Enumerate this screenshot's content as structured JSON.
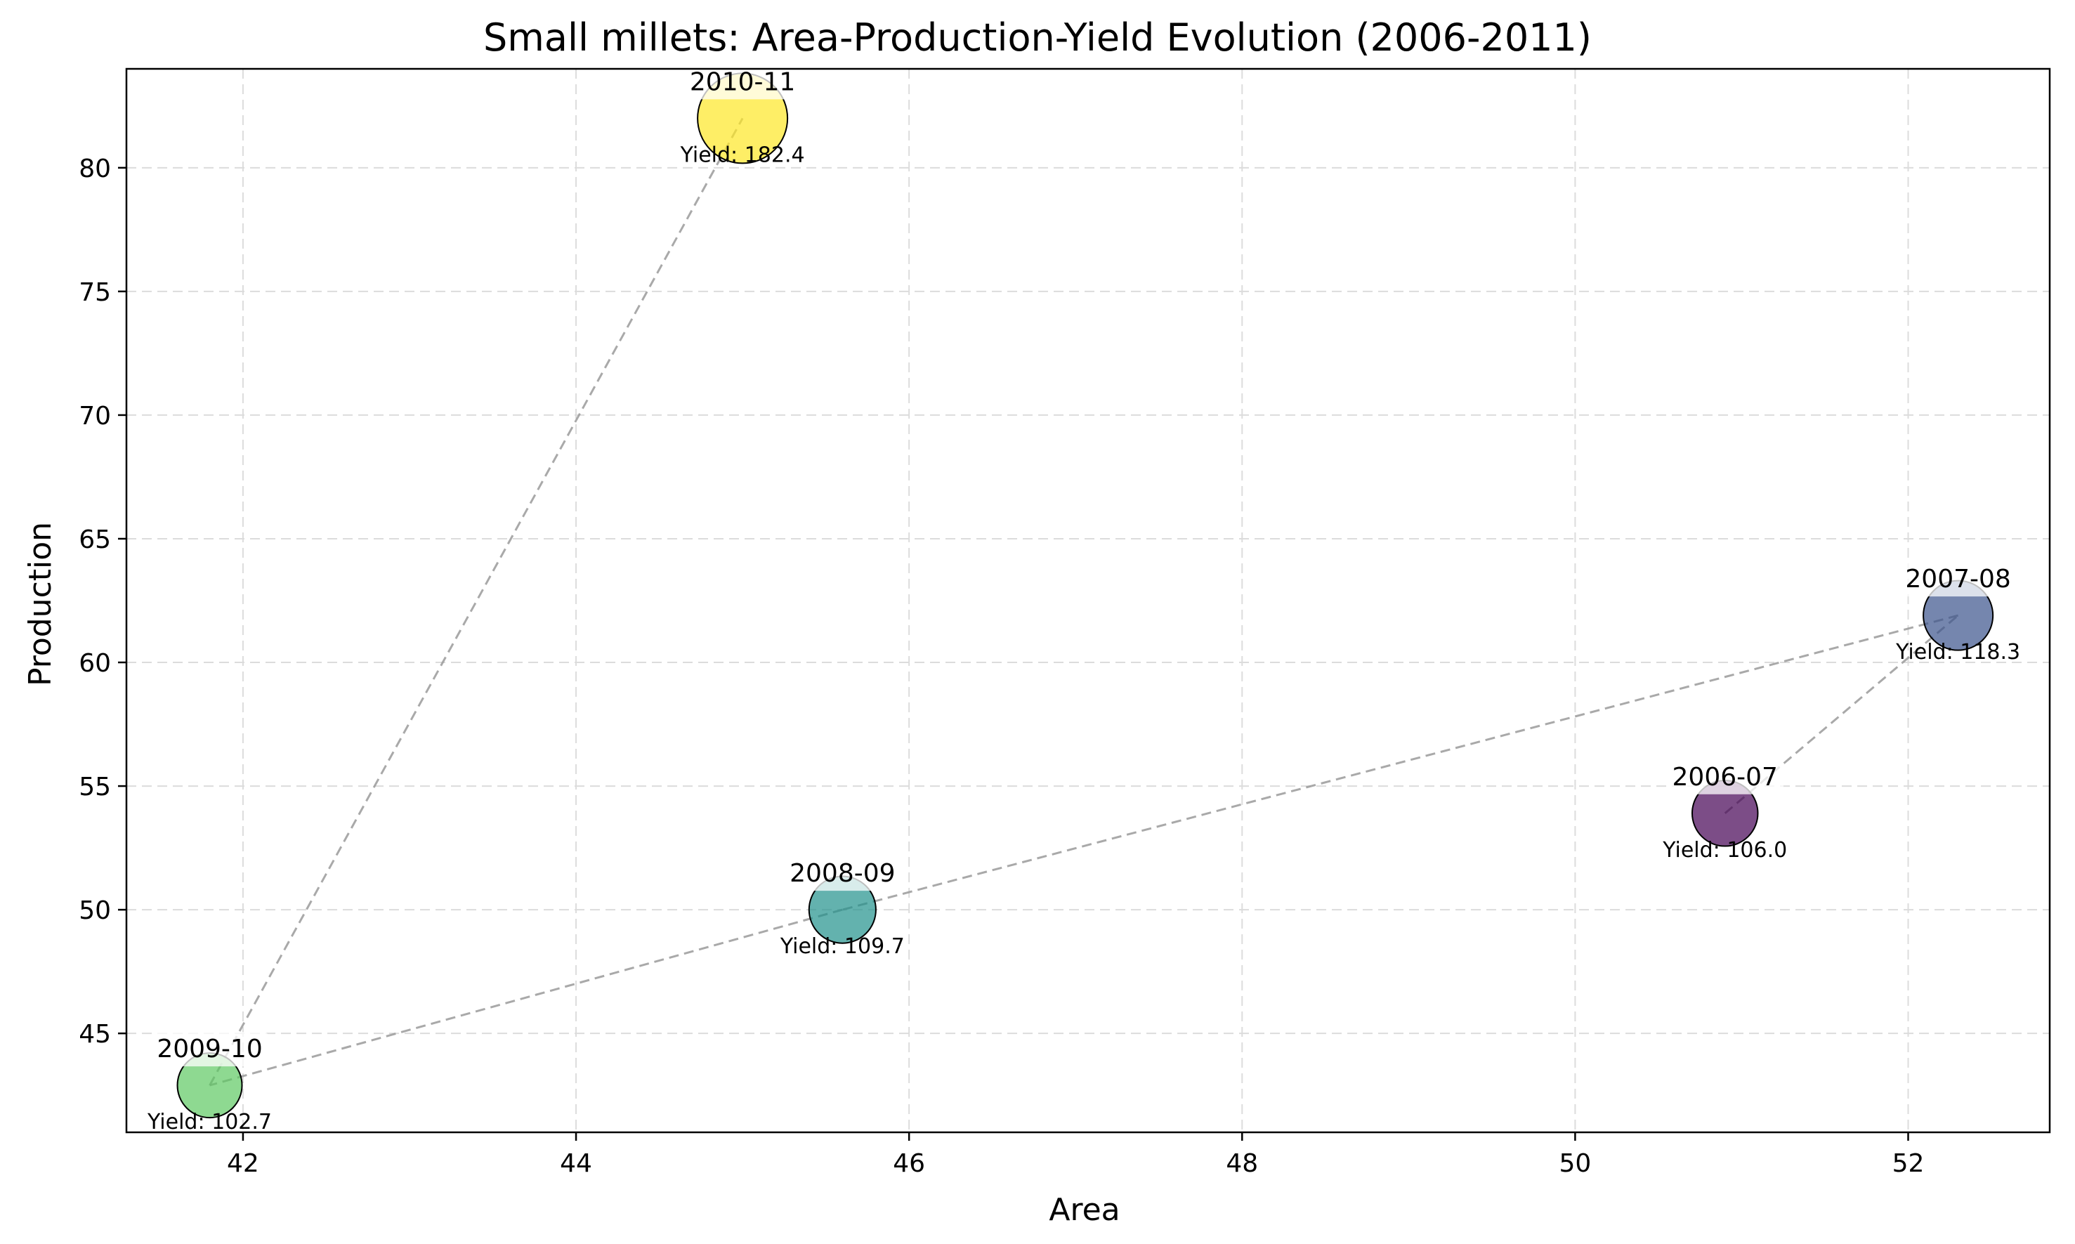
{
  "chart_data": {
    "type": "scatter",
    "title": "Small millets: Area-Production-Yield Evolution (2006-2011)",
    "xlabel": "Area",
    "ylabel": "Production",
    "xlim": [
      41.3,
      52.85
    ],
    "ylim": [
      41.0,
      84.0
    ],
    "xticks": [
      42,
      44,
      46,
      48,
      50,
      52
    ],
    "yticks": [
      45,
      50,
      55,
      60,
      65,
      70,
      75,
      80
    ],
    "grid": true,
    "points": [
      {
        "label": "2006-07",
        "x": 50.9,
        "y": 53.9,
        "yield": 106.0,
        "yield_text": "Yield: 106.0",
        "color": "#440154"
      },
      {
        "label": "2007-08",
        "x": 52.3,
        "y": 61.9,
        "yield": 118.3,
        "yield_text": "Yield: 118.3",
        "color": "#3b528b"
      },
      {
        "label": "2008-09",
        "x": 45.6,
        "y": 50.0,
        "yield": 109.7,
        "yield_text": "Yield: 109.7",
        "color": "#21918c"
      },
      {
        "label": "2009-10",
        "x": 41.8,
        "y": 42.9,
        "yield": 102.7,
        "yield_text": "Yield: 102.7",
        "color": "#5ec962"
      },
      {
        "label": "2010-11",
        "x": 45.0,
        "y": 82.0,
        "yield": 182.4,
        "yield_text": "Yield: 182.4",
        "color": "#fde725"
      }
    ]
  }
}
